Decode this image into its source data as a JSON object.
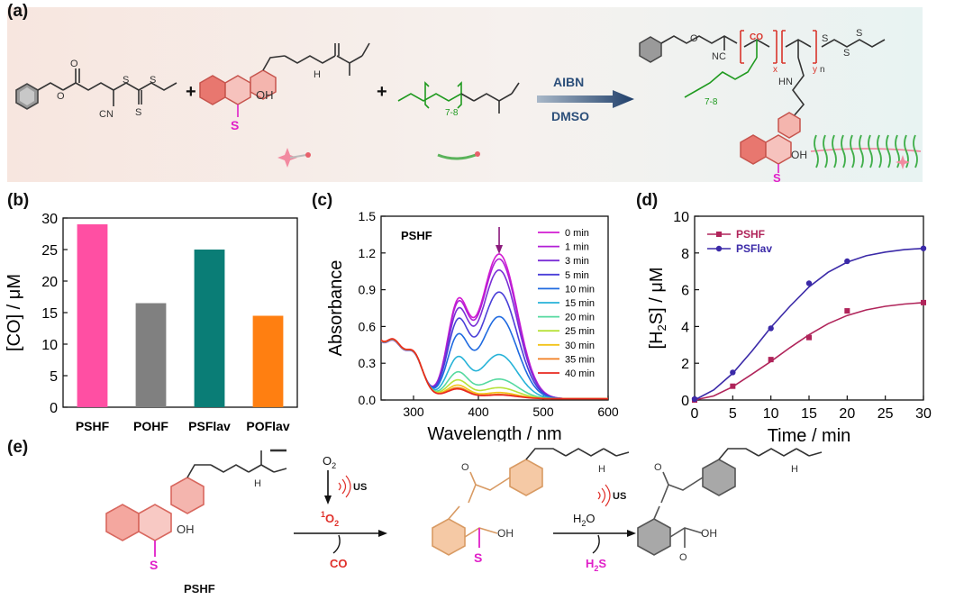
{
  "panels": {
    "a": "(a)",
    "b": "(b)",
    "c": "(c)",
    "d": "(d)",
    "e": "(e)"
  },
  "scheme_a": {
    "plus_1": "+",
    "plus_2": "+",
    "oh_label": "OH",
    "s_label": "S",
    "peg_repeat": "7-8",
    "cn_label": "CN",
    "nh_label": "H",
    "arrow_top": "AIBN",
    "arrow_bottom": "DMSO",
    "product_nc": "NC",
    "product_co": "CO",
    "product_x": "x",
    "product_y": "y",
    "product_n": "n",
    "product_peg": "7-8",
    "product_hn": "HN",
    "product_oh": "OH",
    "product_s": "S",
    "colors": {
      "flavonol": "#e8776f",
      "sulfur": "#e020c8",
      "peg": "#1f9a1f",
      "arrow": "#2c4f7a",
      "polymer_red": "#d9342b"
    }
  },
  "chart_data": [
    {
      "id": "b",
      "type": "bar",
      "categories": [
        "PSHF",
        "POHF",
        "PSFlav",
        "POFlav"
      ],
      "values": [
        29.0,
        16.5,
        25.0,
        14.5
      ],
      "colors": [
        "#ff4fa3",
        "#808080",
        "#0a7d76",
        "#ff7f11"
      ],
      "ylabel": "[CO] / μM",
      "xlabel": "",
      "ylim": [
        0,
        30
      ],
      "yticks": [
        0,
        5,
        10,
        15,
        20,
        25,
        30
      ],
      "grid": false
    },
    {
      "id": "c",
      "type": "line",
      "inner_label": "PSHF",
      "xlabel": "Wavelength / nm",
      "ylabel": "Absorbance",
      "xlim": [
        250,
        600
      ],
      "ylim": [
        0,
        1.5
      ],
      "xticks": [
        300,
        400,
        500,
        600
      ],
      "yticks": [
        0.0,
        0.3,
        0.6,
        0.9,
        1.2,
        1.5
      ],
      "ytick_labels": [
        "0.0",
        "0.3",
        "0.6",
        "0.9",
        "1.2",
        "1.5"
      ],
      "legend_placement": "top-right",
      "arrow_at_x": 432,
      "series": [
        {
          "name": "0 min",
          "color": "#d21bd2",
          "peak1": 0.72,
          "peak2": 1.18
        },
        {
          "name": "1 min",
          "color": "#b21fd6",
          "peak1": 0.7,
          "peak2": 1.14
        },
        {
          "name": "3 min",
          "color": "#7a2fd6",
          "peak1": 0.65,
          "peak2": 1.05
        },
        {
          "name": "5 min",
          "color": "#4a3fd8",
          "peak1": 0.58,
          "peak2": 0.87
        },
        {
          "name": "10 min",
          "color": "#1f6ae0",
          "peak1": 0.47,
          "peak2": 0.67
        },
        {
          "name": "15 min",
          "color": "#27b3d8",
          "peak1": 0.31,
          "peak2": 0.36
        },
        {
          "name": "20 min",
          "color": "#55d9a0",
          "peak1": 0.2,
          "peak2": 0.16
        },
        {
          "name": "25 min",
          "color": "#b7e23a",
          "peak1": 0.14,
          "peak2": 0.09
        },
        {
          "name": "30 min",
          "color": "#f2c318",
          "peak1": 0.1,
          "peak2": 0.05
        },
        {
          "name": "35 min",
          "color": "#f27c1f",
          "peak1": 0.08,
          "peak2": 0.035
        },
        {
          "name": "40 min",
          "color": "#e8281f",
          "peak1": 0.07,
          "peak2": 0.03
        }
      ]
    },
    {
      "id": "d",
      "type": "scatter",
      "xlabel": "Time / min",
      "ylabel": "[H2S] / μM",
      "ylabel_parts": [
        "[H",
        "2",
        "S] / μM"
      ],
      "xlim": [
        0,
        30
      ],
      "ylim": [
        0,
        10
      ],
      "xticks": [
        0,
        5,
        10,
        15,
        20,
        25,
        30
      ],
      "yticks": [
        0,
        2,
        4,
        6,
        8,
        10
      ],
      "legend_placement": "top-left",
      "series": [
        {
          "name": "PSHF",
          "color": "#b0245a",
          "marker": "square",
          "x": [
            0,
            5,
            10,
            15,
            20,
            30
          ],
          "y": [
            0.0,
            0.75,
            2.2,
            3.4,
            4.85,
            5.3
          ],
          "fit": [
            [
              0,
              0
            ],
            [
              2.5,
              0.22
            ],
            [
              5,
              0.72
            ],
            [
              7.5,
              1.4
            ],
            [
              10,
              2.1
            ],
            [
              12.5,
              2.85
            ],
            [
              15,
              3.55
            ],
            [
              17.5,
              4.15
            ],
            [
              20,
              4.6
            ],
            [
              22.5,
              4.9
            ],
            [
              25,
              5.1
            ],
            [
              27.5,
              5.22
            ],
            [
              30,
              5.3
            ]
          ]
        },
        {
          "name": "PSFlav",
          "color": "#3b2aa8",
          "marker": "circle",
          "x": [
            0,
            5,
            10,
            15,
            20,
            30
          ],
          "y": [
            0.05,
            1.5,
            3.9,
            6.35,
            7.55,
            8.25
          ],
          "fit": [
            [
              0,
              0
            ],
            [
              2.5,
              0.55
            ],
            [
              5,
              1.45
            ],
            [
              7.5,
              2.65
            ],
            [
              10,
              3.95
            ],
            [
              12.5,
              5.1
            ],
            [
              15,
              6.15
            ],
            [
              17.5,
              6.95
            ],
            [
              20,
              7.5
            ],
            [
              22.5,
              7.85
            ],
            [
              25,
              8.05
            ],
            [
              27.5,
              8.18
            ],
            [
              30,
              8.25
            ]
          ]
        }
      ]
    }
  ],
  "scheme_e": {
    "label_start": "PSHF",
    "o2_label": "O",
    "o2_sub": "2",
    "us_label_1": "US",
    "singlet_sup": "1",
    "singlet_main": "O",
    "singlet_sub": "2",
    "co_label": "CO",
    "h2o_label": "H",
    "h2o_sub": "2",
    "h2o_tail": "O",
    "us_label_2": "US",
    "h2s_label": "H",
    "h2s_sub": "2",
    "h2s_tail": "S",
    "oh_1": "OH",
    "oh_2": "OH",
    "oh_3": "OH",
    "s_1": "S",
    "s_2": "S",
    "nh_1": "H",
    "nh_2": "H",
    "nh_3": "H"
  }
}
